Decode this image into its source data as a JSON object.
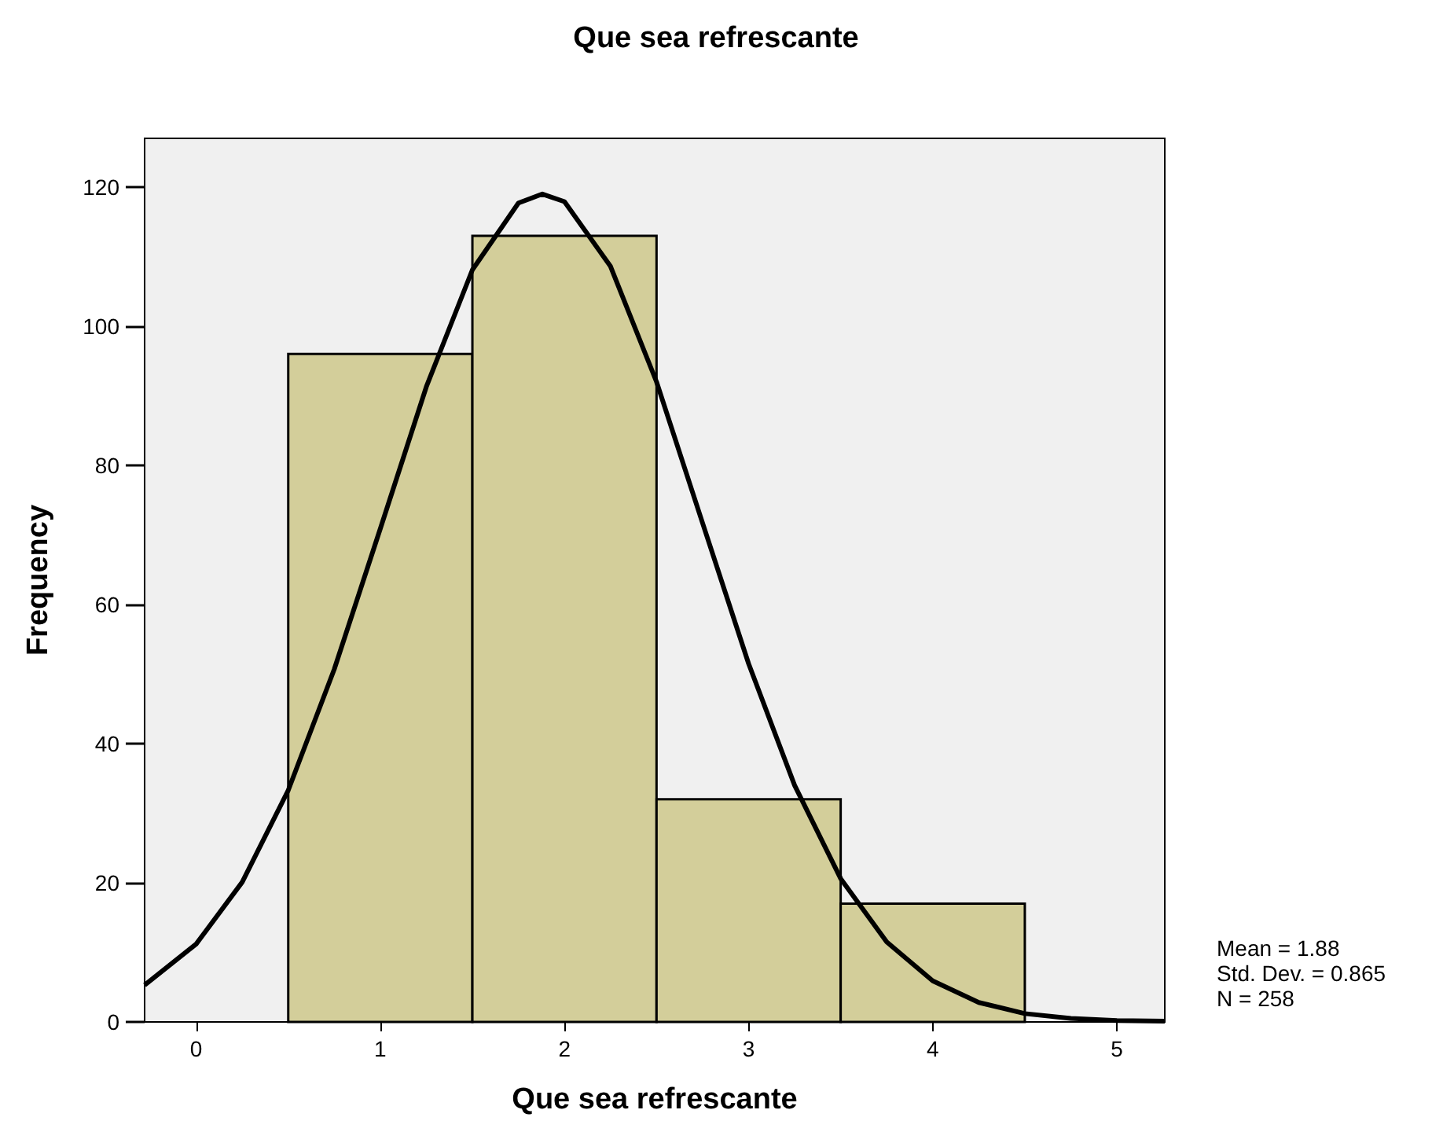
{
  "chart_data": {
    "type": "histogram",
    "title": "Que sea refrescante",
    "xlabel": "Que sea refrescante",
    "ylabel": "Frequency",
    "bins": [
      0.5,
      1.5,
      2.5,
      3.5,
      4.5
    ],
    "values": [
      96,
      113,
      32,
      17
    ],
    "color": "#d3ce9a",
    "series": [
      {
        "type": "line",
        "color": "#000000",
        "x": [
          -0.28,
          0,
          0.25,
          0.5,
          0.75,
          1,
          1.25,
          1.5,
          1.75,
          1.88,
          2,
          2.25,
          2.5,
          2.75,
          3,
          3.25,
          3.5,
          3.75,
          4,
          4.25,
          4.5,
          4.75,
          5,
          5.26
        ],
        "values": [
          5.3,
          11.2,
          20.1,
          33.3,
          50.7,
          70.9,
          91.3,
          108.1,
          117.7,
          119,
          117.9,
          108.6,
          92,
          71.7,
          51.5,
          34,
          20.6,
          11.5,
          5.9,
          2.8,
          1.2,
          0.5,
          0.2,
          0.1
        ]
      }
    ],
    "xlim": [
      -0.28,
      5.26
    ],
    "xticks": [
      0,
      1,
      2,
      3,
      4,
      5
    ],
    "ylim": [
      0,
      127
    ],
    "yticks": [
      0,
      20,
      40,
      60,
      80,
      100,
      120
    ],
    "grid": false,
    "annotations": [
      "Mean = 1.88",
      "Std. Dev. = 0.865",
      "N = 258"
    ]
  }
}
